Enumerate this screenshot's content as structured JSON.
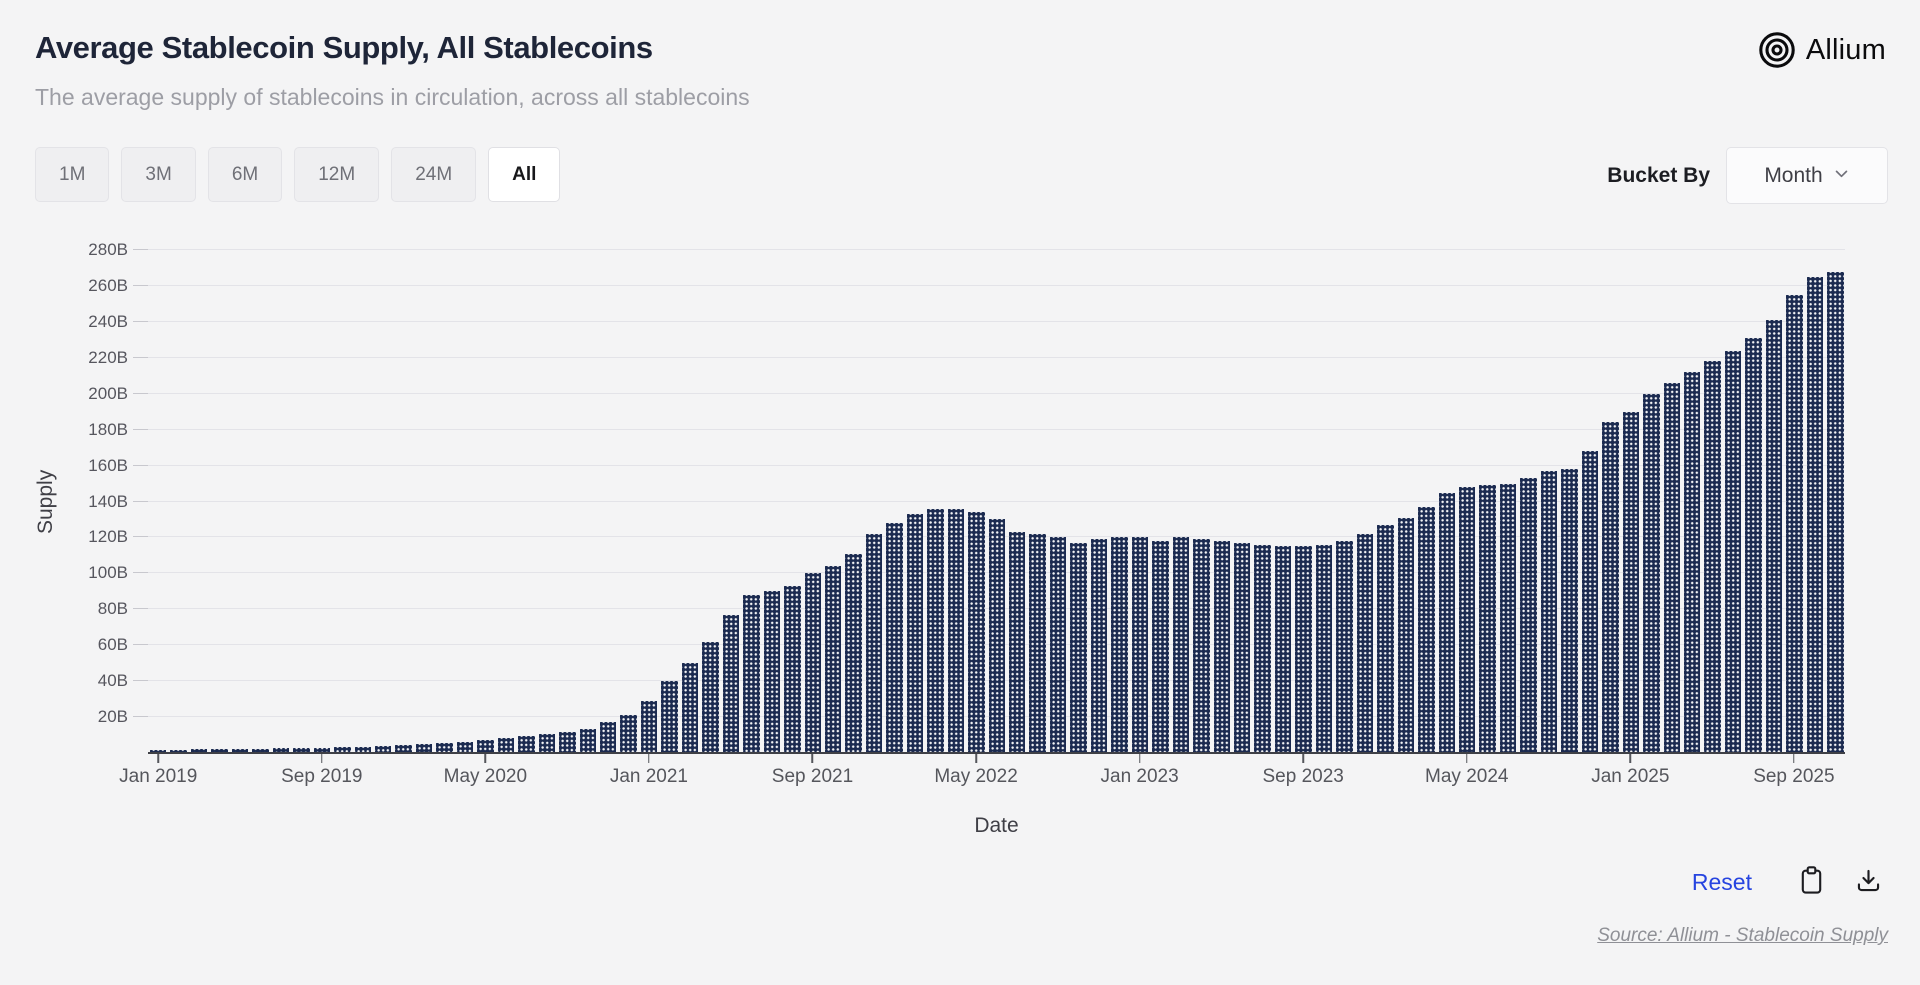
{
  "header": {
    "title": "Average Stablecoin Supply, All Stablecoins",
    "subtitle": "The average supply of stablecoins in circulation, across all stablecoins"
  },
  "brand": {
    "name": "Allium",
    "logo_icon": "allium-concentric-circles-icon"
  },
  "controls": {
    "range_buttons": [
      {
        "label": "1M",
        "selected": false
      },
      {
        "label": "3M",
        "selected": false
      },
      {
        "label": "6M",
        "selected": false
      },
      {
        "label": "12M",
        "selected": false
      },
      {
        "label": "24M",
        "selected": false
      },
      {
        "label": "All",
        "selected": true
      }
    ],
    "bucket_by_label": "Bucket By",
    "bucket_by_value": "Month"
  },
  "footer": {
    "reset_label": "Reset",
    "source_text": "Source: Allium - Stablecoin Supply"
  },
  "chart_data": {
    "type": "bar",
    "title": "Average Stablecoin Supply, All Stablecoins",
    "xlabel": "Date",
    "ylabel": "Supply",
    "unit": "B",
    "ylim": [
      0,
      280
    ],
    "ytick_step": 20,
    "x_tick_every": 8,
    "x_tick_labels": [
      "Jan 2019",
      "Sep 2019",
      "May 2020",
      "Jan 2021",
      "Sep 2021",
      "May 2022",
      "Jan 2023",
      "Sep 2023",
      "May 2024",
      "Jan 2025",
      "Sep 2025"
    ],
    "grid": true,
    "legend": false,
    "bar_color": "#1b2a50",
    "bar_pattern": "white-dot-grid",
    "categories": [
      "Jan 2019",
      "Feb 2019",
      "Mar 2019",
      "Apr 2019",
      "May 2019",
      "Jun 2019",
      "Jul 2019",
      "Aug 2019",
      "Sep 2019",
      "Oct 2019",
      "Nov 2019",
      "Dec 2019",
      "Jan 2020",
      "Feb 2020",
      "Mar 2020",
      "Apr 2020",
      "May 2020",
      "Jun 2020",
      "Jul 2020",
      "Aug 2020",
      "Sep 2020",
      "Oct 2020",
      "Nov 2020",
      "Dec 2020",
      "Jan 2021",
      "Feb 2021",
      "Mar 2021",
      "Apr 2021",
      "May 2021",
      "Jun 2021",
      "Jul 2021",
      "Aug 2021",
      "Sep 2021",
      "Oct 2021",
      "Nov 2021",
      "Dec 2021",
      "Jan 2022",
      "Feb 2022",
      "Mar 2022",
      "Apr 2022",
      "May 2022",
      "Jun 2022",
      "Jul 2022",
      "Aug 2022",
      "Sep 2022",
      "Oct 2022",
      "Nov 2022",
      "Dec 2022",
      "Jan 2023",
      "Feb 2023",
      "Mar 2023",
      "Apr 2023",
      "May 2023",
      "Jun 2023",
      "Jul 2023",
      "Aug 2023",
      "Sep 2023",
      "Oct 2023",
      "Nov 2023",
      "Dec 2023",
      "Jan 2024",
      "Feb 2024",
      "Mar 2024",
      "Apr 2024",
      "May 2024",
      "Jun 2024",
      "Jul 2024",
      "Aug 2024",
      "Sep 2024",
      "Oct 2024",
      "Nov 2024",
      "Dec 2024",
      "Jan 2025",
      "Feb 2025",
      "Mar 2025",
      "Apr 2025",
      "May 2025",
      "Jun 2025",
      "Jul 2025",
      "Aug 2025",
      "Sep 2025",
      "Oct 2025",
      "Nov 2025"
    ],
    "values": [
      1.8,
      1.9,
      2.0,
      2.2,
      2.3,
      2.5,
      2.6,
      2.7,
      2.9,
      3.1,
      3.4,
      3.8,
      4.3,
      4.8,
      5.4,
      6.3,
      7.3,
      8.2,
      9.3,
      10.6,
      11.9,
      13.5,
      17,
      21,
      29,
      40,
      50,
      62,
      77,
      88,
      90,
      93,
      100,
      104,
      111,
      122,
      128,
      133,
      136,
      136,
      134,
      130,
      123,
      122,
      120,
      117,
      119,
      120,
      120,
      118,
      120,
      119,
      118,
      117,
      116,
      115,
      115,
      116,
      118,
      122,
      127,
      131,
      137,
      145,
      148,
      149,
      150,
      153,
      157,
      158,
      168,
      184,
      190,
      200,
      206,
      212,
      218,
      224,
      231,
      241,
      255,
      265,
      268
    ]
  }
}
